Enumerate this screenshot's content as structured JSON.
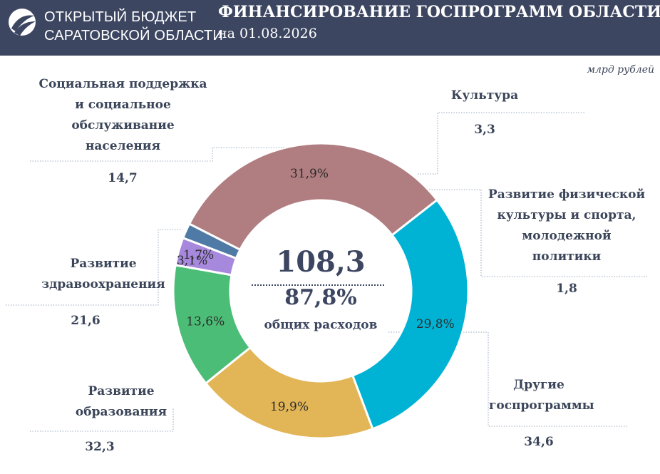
{
  "header": {
    "org_line1": "ОТКРЫТЫЙ БЮДЖЕТ",
    "org_line2": "САРАТОВСКОЙ ОБЛАСТИ",
    "title": "ФИНАНСИРОВАНИЕ ГОСПРОГРАММ ОБЛАСТИ",
    "date": "на 01.08.2026"
  },
  "unit": "млрд рублей",
  "center": {
    "total": "108,3",
    "share": "87,8%",
    "caption": "общих расходов"
  },
  "chart_data": {
    "type": "pie",
    "donut": true,
    "unit": "млрд рублей",
    "slices": [
      {
        "label": [
          "Другие",
          "госпрограммы"
        ],
        "value": 34.6,
        "value_text": "34,6",
        "percent": 31.9,
        "percent_text": "31,9%",
        "color": "#b07d80"
      },
      {
        "label": [
          "Развитие",
          "образования"
        ],
        "value": 32.3,
        "value_text": "32,3",
        "percent": 29.8,
        "percent_text": "29,8%",
        "color": "#00b3d4"
      },
      {
        "label": [
          "Развитие",
          "здравоохранения"
        ],
        "value": 21.6,
        "value_text": "21,6",
        "percent": 19.9,
        "percent_text": "19,9%",
        "color": "#e2b556"
      },
      {
        "label": [
          "Социальная поддержка",
          "и социальное",
          "обслуживание",
          "населения"
        ],
        "value": 14.7,
        "value_text": "14,7",
        "percent": 13.6,
        "percent_text": "13,6%",
        "color": "#4cbd77"
      },
      {
        "label": [
          "Культура"
        ],
        "value": 3.3,
        "value_text": "3,3",
        "percent": 3.1,
        "percent_text": "3,1%",
        "color": "#a689dc"
      },
      {
        "label": [
          "Развитие физической",
          "культуры и спорта,",
          "молодежной",
          "политики"
        ],
        "value": 1.8,
        "value_text": "1,8",
        "percent": 1.7,
        "percent_text": "1,7%",
        "color": "#4f7aa6"
      }
    ]
  }
}
